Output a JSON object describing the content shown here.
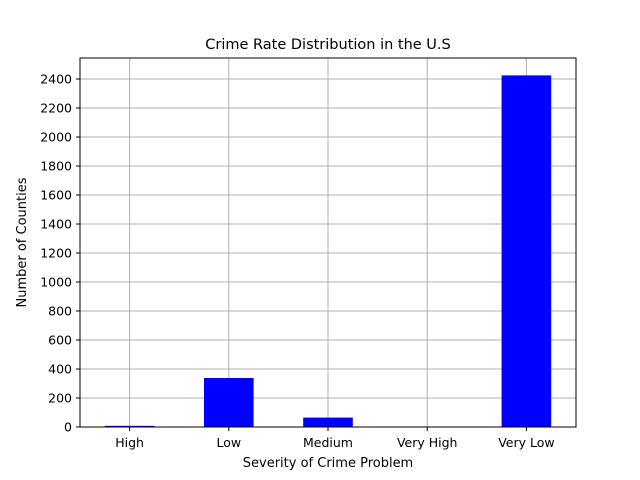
{
  "chart_data": {
    "type": "bar",
    "title": "Crime Rate Distribution in the U.S",
    "xlabel": "Severity of Crime Problem",
    "ylabel": "Number of Counties",
    "categories": [
      "High",
      "Low",
      "Medium",
      "Very High",
      "Very Low"
    ],
    "values": [
      8,
      338,
      65,
      2,
      2425
    ],
    "ylim": [
      0,
      2545
    ],
    "yticks": [
      0,
      200,
      400,
      600,
      800,
      1000,
      1200,
      1400,
      1600,
      1800,
      2000,
      2200,
      2400
    ],
    "grid": true,
    "bar_color": "#0000ff"
  }
}
